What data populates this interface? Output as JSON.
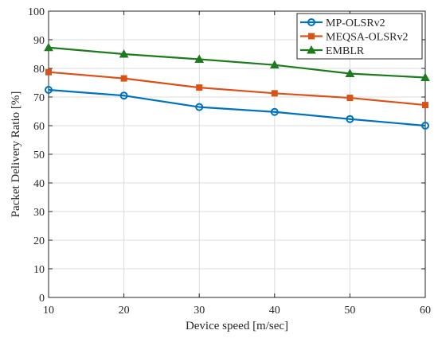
{
  "chart_data": {
    "type": "line",
    "title": "",
    "xlabel": "Device speed [m/sec]",
    "ylabel": "Packet Delivery Ratio [%]",
    "x": [
      10,
      20,
      30,
      40,
      50,
      60
    ],
    "xlim": [
      10,
      60
    ],
    "ylim": [
      0,
      100
    ],
    "x_ticks": [
      10,
      20,
      30,
      40,
      50,
      60
    ],
    "y_ticks": [
      0,
      10,
      20,
      30,
      40,
      50,
      60,
      70,
      80,
      90,
      100
    ],
    "grid": true,
    "legend_position": "top-right",
    "series": [
      {
        "name": "MP-OLSRv2",
        "values": [
          72.5,
          70.5,
          66.5,
          64.8,
          62.3,
          60.0
        ],
        "color": "#0072BD",
        "marker": "circle"
      },
      {
        "name": "MEQSA-OLSRv2",
        "values": [
          78.7,
          76.5,
          73.3,
          71.3,
          69.7,
          67.2
        ],
        "color": "#D95319",
        "marker": "square"
      },
      {
        "name": "EMBLR",
        "values": [
          87.3,
          85.0,
          83.2,
          81.2,
          78.2,
          76.8
        ],
        "color": "#1E7A1E",
        "marker": "triangle"
      }
    ]
  }
}
